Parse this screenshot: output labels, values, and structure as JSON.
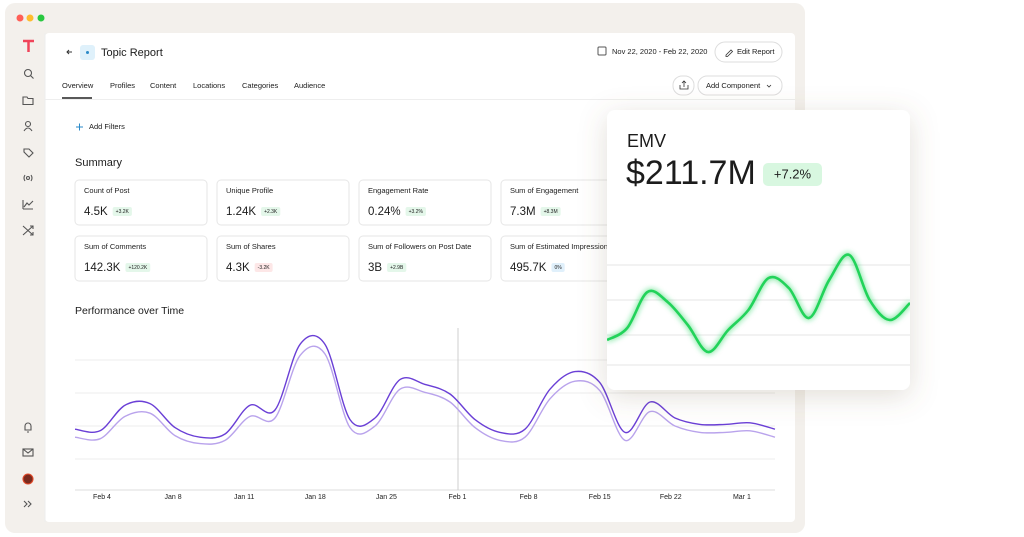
{
  "header": {
    "title": "Topic Report",
    "date_range": "Nov 22, 2020 - Feb 22, 2020",
    "edit_button": "Edit Report"
  },
  "tabs": [
    "Overview",
    "Profiles",
    "Content",
    "Locations",
    "Categories",
    "Audience"
  ],
  "add_component": "Add Component",
  "add_filters": "Add Filters",
  "summary": {
    "title": "Summary",
    "cards": [
      {
        "label": "Count of Post",
        "value": "4.5K",
        "change": "+3.2K",
        "trend": "up"
      },
      {
        "label": "Unique Profile",
        "value": "1.24K",
        "change": "+2.3K",
        "trend": "up"
      },
      {
        "label": "Engagement Rate",
        "value": "0.24%",
        "change": "+3.2%",
        "trend": "up"
      },
      {
        "label": "Sum of Engagement",
        "value": "7.3M",
        "change": "+8.3M",
        "trend": "up"
      },
      {
        "label": "Sum of Comments",
        "value": "142.3K",
        "change": "+120.2K",
        "trend": "up"
      },
      {
        "label": "Sum of Shares",
        "value": "4.3K",
        "change": "-3.2K",
        "trend": "down"
      },
      {
        "label": "Sum of Followers on Post Date",
        "value": "3B",
        "change": "+2.9B",
        "trend": "up"
      },
      {
        "label": "Sum of Estimated Impressions",
        "value": "495.7K",
        "change": "0%",
        "trend": "flat"
      }
    ]
  },
  "performance": {
    "title": "Performance over Time",
    "categories": [
      "Feb 4",
      "Jan 8",
      "Jan 11",
      "Jan 18",
      "Jan 25",
      "Feb 1",
      "Feb 8",
      "Feb 15",
      "Feb 22",
      "Mar 1"
    ],
    "series": [
      {
        "color": "#6a3fd6",
        "values": [
          38,
          37,
          53,
          54,
          39,
          33,
          35,
          53,
          50,
          91,
          91,
          44,
          45,
          69,
          66,
          60,
          44,
          36,
          38,
          63,
          74,
          67,
          36,
          55,
          45,
          41,
          41,
          42,
          38
        ]
      },
      {
        "color": "#b9a3ec",
        "values": [
          33,
          32,
          46,
          48,
          34,
          29,
          31,
          46,
          45,
          84,
          85,
          39,
          40,
          63,
          61,
          55,
          39,
          31,
          33,
          57,
          68,
          62,
          31,
          49,
          40,
          36,
          36,
          37,
          33
        ]
      }
    ]
  },
  "emv": {
    "label": "EMV",
    "value": "$211.7M",
    "change": "+7.2%",
    "color": "#22d35a",
    "values": [
      40,
      52,
      88,
      78,
      55,
      28,
      50,
      70,
      102,
      92,
      62,
      100,
      125,
      80,
      60,
      77
    ]
  }
}
